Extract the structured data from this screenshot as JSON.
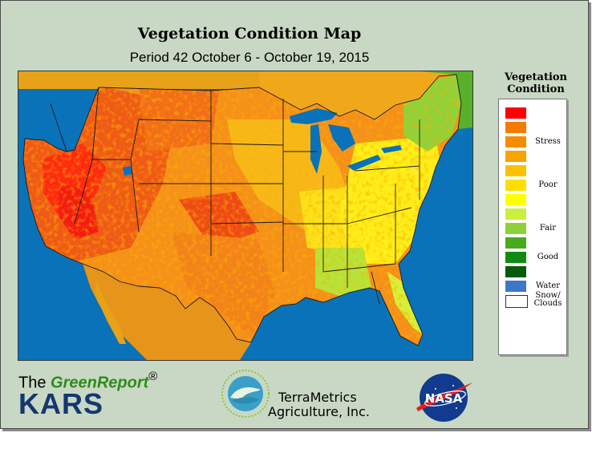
{
  "header": {
    "title": "Vegetation Condition Map",
    "subtitle": "Period 42  October 6 - October 19, 2015"
  },
  "map": {
    "region": "Contiguous United States",
    "water_color": "#0a72b8"
  },
  "legend": {
    "title_line1": "Vegetation",
    "title_line2": "Condition",
    "classes": [
      {
        "color": "#ff0000",
        "label": ""
      },
      {
        "color": "#f47a00",
        "label": ""
      },
      {
        "color": "#f58c00",
        "label": "Stress"
      },
      {
        "color": "#f7a300",
        "label": ""
      },
      {
        "color": "#fcc200",
        "label": ""
      },
      {
        "color": "#ffdf00",
        "label": "Poor"
      },
      {
        "color": "#ffff00",
        "label": ""
      },
      {
        "color": "#c8f03c",
        "label": ""
      },
      {
        "color": "#8ed03a",
        "label": "Fair"
      },
      {
        "color": "#4aaa1e",
        "label": ""
      },
      {
        "color": "#0f8a12",
        "label": "Good"
      },
      {
        "color": "#045c08",
        "label": ""
      },
      {
        "color": "#3d78c8",
        "label": "Water"
      },
      {
        "color": "#ffffff",
        "label": "Snow/\nClouds"
      }
    ]
  },
  "footer": {
    "greenreport_prefix": "The ",
    "greenreport_name": "GreenReport",
    "greenreport_mark": "®",
    "kars": "KARS",
    "terra_line1": "TerraMetrics",
    "terra_line2": "Agriculture, Inc.",
    "nasa_logo_text": "NASA"
  }
}
